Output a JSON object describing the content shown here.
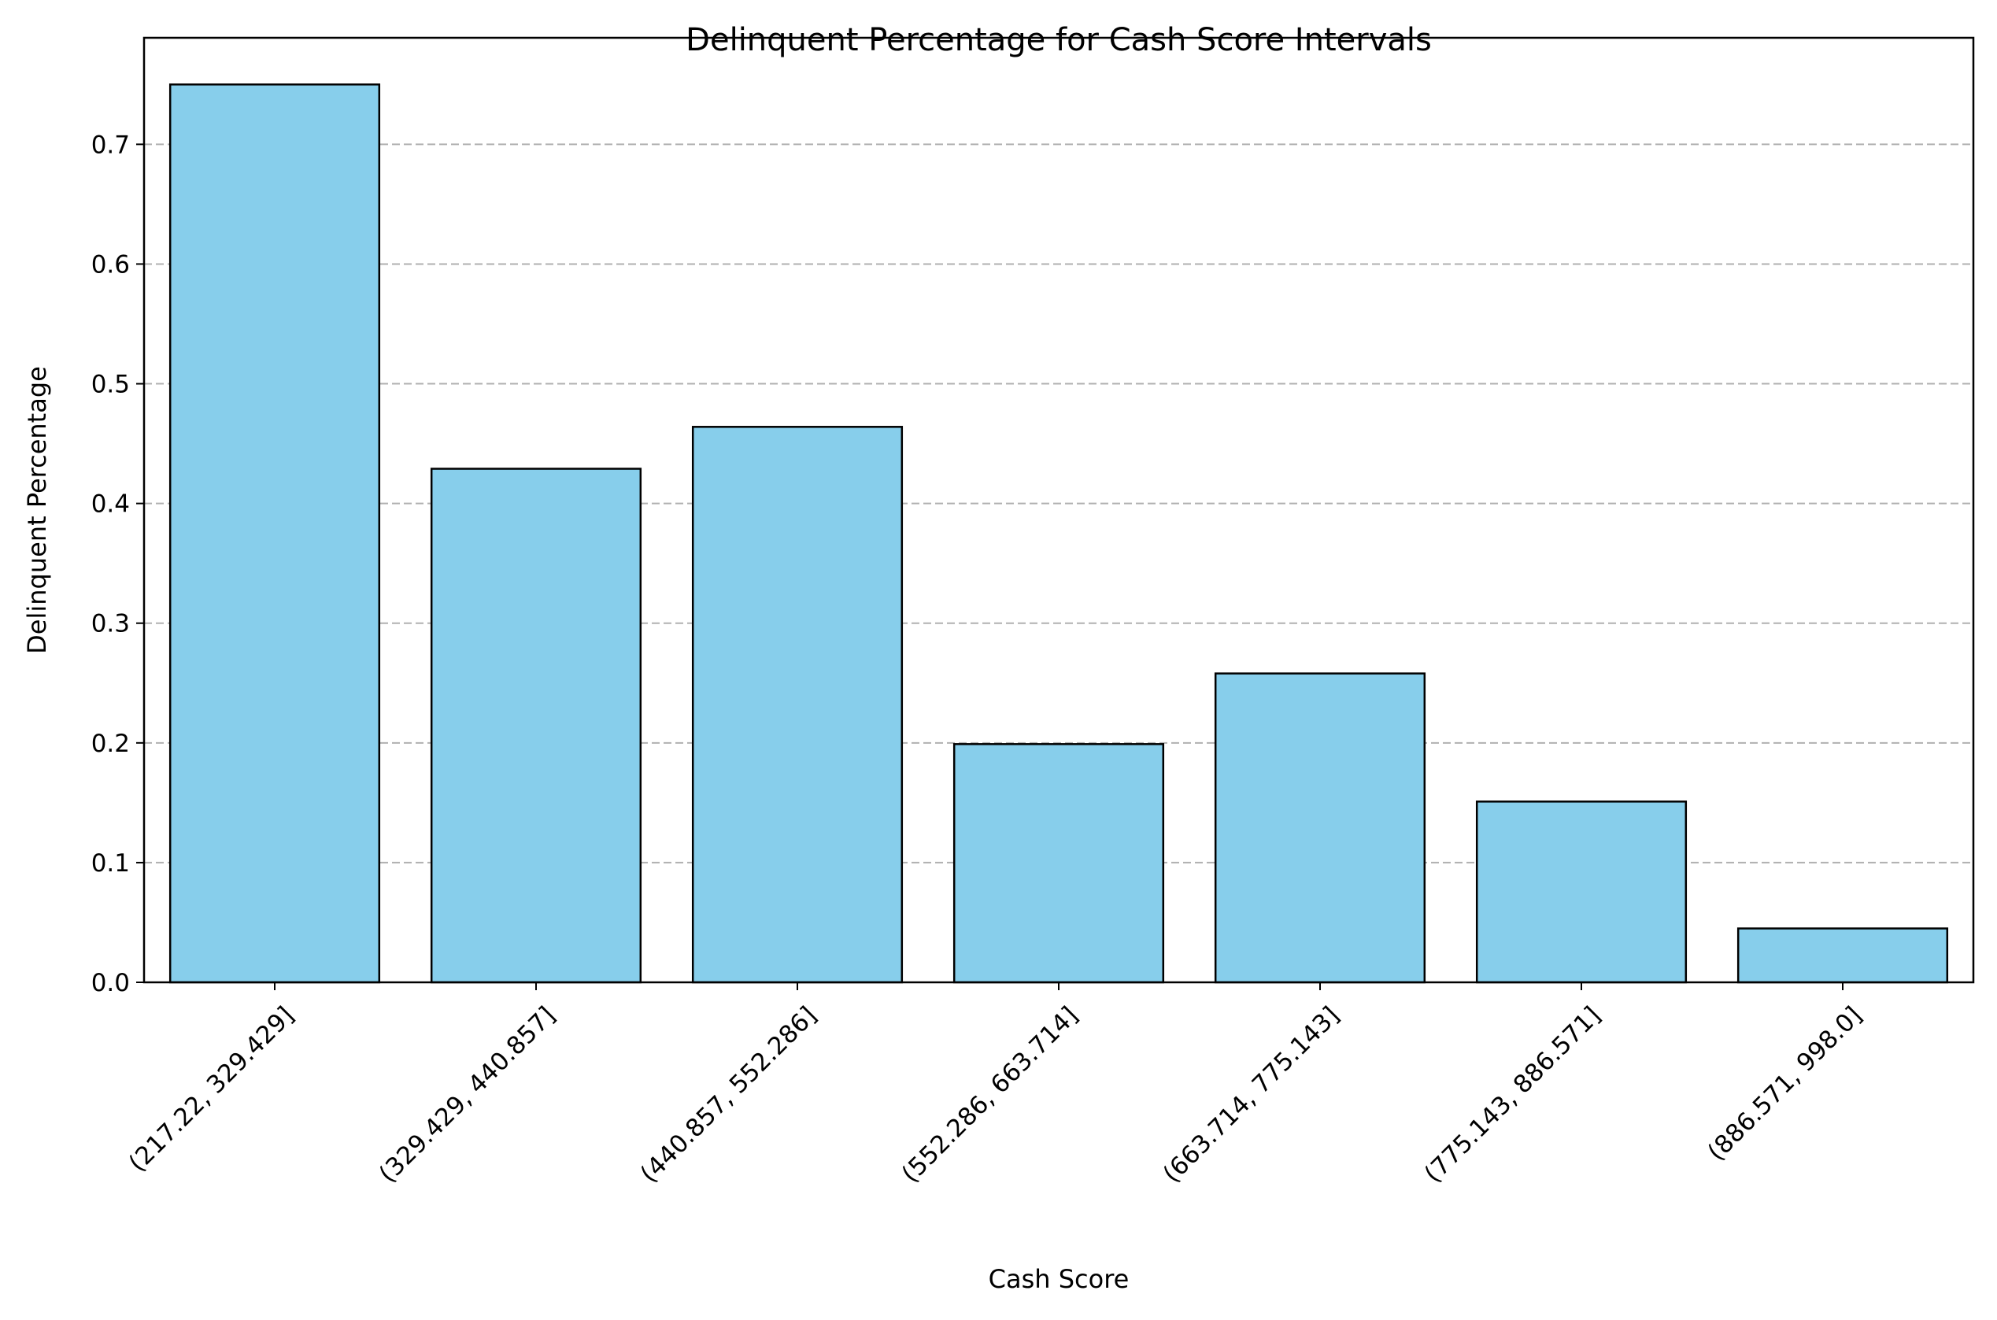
{
  "chart_data": {
    "type": "bar",
    "title": "Delinquent Percentage for Cash Score Intervals",
    "xlabel": "Cash Score",
    "ylabel": "Delinquent Percentage",
    "categories": [
      "(217.22, 329.429]",
      "(329.429, 440.857]",
      "(440.857, 552.286]",
      "(552.286, 663.714]",
      "(663.714, 775.143]",
      "(775.143, 886.571]",
      "(886.571, 998.0]"
    ],
    "values": [
      0.75,
      0.429,
      0.464,
      0.199,
      0.258,
      0.151,
      0.045
    ],
    "ylim": [
      0,
      0.789
    ],
    "yticks": [
      0.0,
      0.1,
      0.2,
      0.3,
      0.4,
      0.5,
      0.6,
      0.7
    ],
    "ytick_labels": [
      "0.0",
      "0.1",
      "0.2",
      "0.3",
      "0.4",
      "0.5",
      "0.6",
      "0.7"
    ],
    "grid": {
      "axis": "y",
      "style": "dashed"
    },
    "bar_color": "#87CEEB",
    "edge_color": "#000000",
    "grid_color": "#b0b0b0"
  }
}
